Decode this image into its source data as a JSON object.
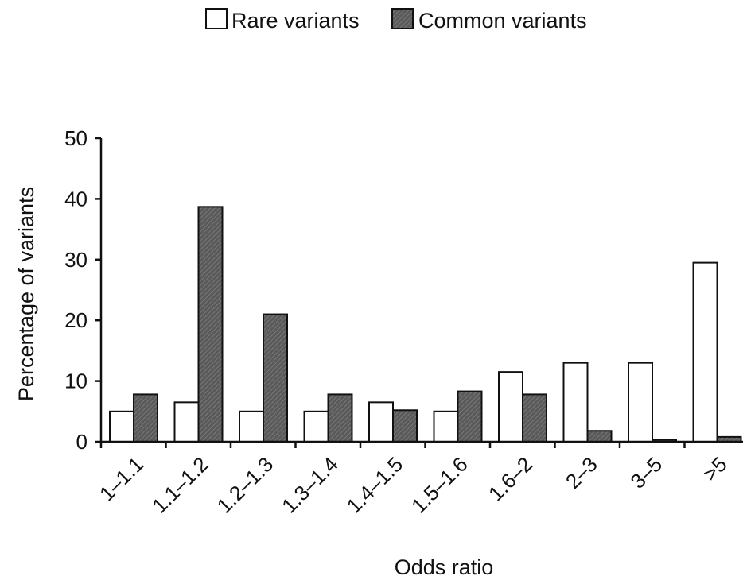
{
  "chart_data": {
    "type": "bar",
    "title": "",
    "xlabel": "Odds ratio",
    "ylabel": "Percentage of variants",
    "ylim": [
      0,
      50
    ],
    "yticks": [
      0,
      10,
      20,
      30,
      40,
      50
    ],
    "grid": false,
    "legend": "top-center",
    "categories": [
      "1–1.1",
      "1.1–1.2",
      "1.2–1.3",
      "1.3–1.4",
      "1.4–1.5",
      "1.5–1.6",
      "1.6–2",
      "2–3",
      "3–5",
      ">5"
    ],
    "series": [
      {
        "name": "Rare variants",
        "color": "#ffffff",
        "pattern": "none",
        "values": [
          5,
          6.5,
          5,
          5,
          6.5,
          5,
          11.5,
          13,
          13,
          29.5
        ]
      },
      {
        "name": "Common variants",
        "color": "#5a5a5a",
        "pattern": "diagonal-hatch",
        "values": [
          7.8,
          38.7,
          21,
          7.8,
          5.2,
          8.3,
          7.8,
          1.8,
          0.3,
          0.8
        ]
      }
    ]
  }
}
